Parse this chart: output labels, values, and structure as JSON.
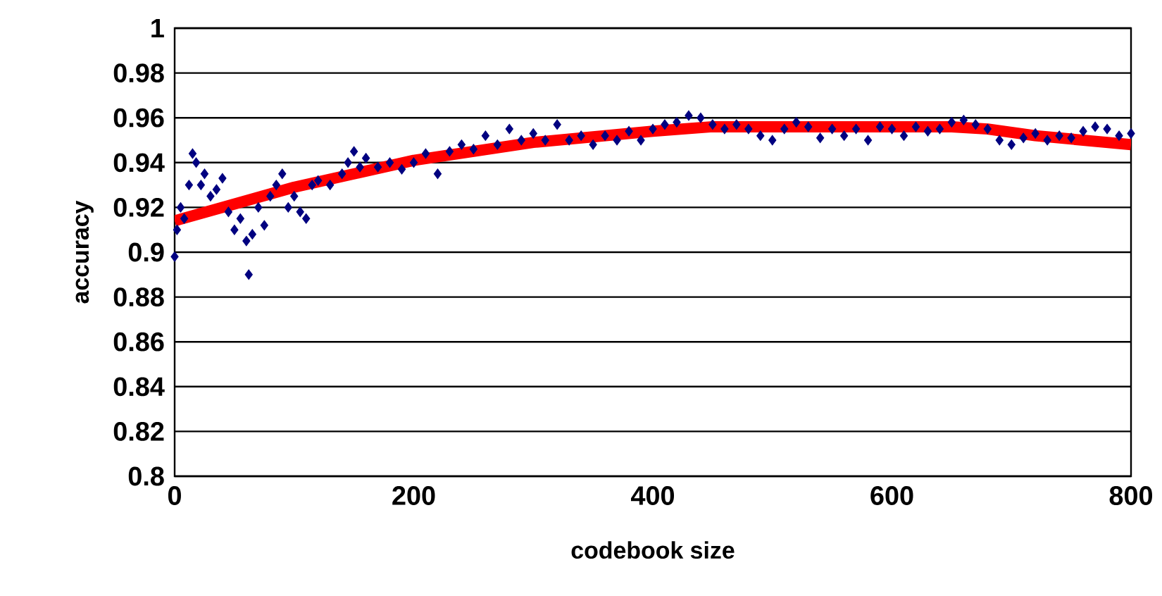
{
  "chart_data": {
    "type": "scatter",
    "xlabel": "codebook size",
    "ylabel": "accuracy",
    "xlim": [
      0,
      800
    ],
    "xticks": [
      0,
      200,
      400,
      600,
      800
    ],
    "ylim": [
      0.8,
      1
    ],
    "yticks": [
      0.8,
      0.82,
      0.84,
      0.86,
      0.88,
      0.9,
      0.92,
      0.94,
      0.96,
      0.98,
      1
    ],
    "grid": "y",
    "series": [
      {
        "marker": "diamond",
        "color": "#000080",
        "x": [
          0,
          2,
          5,
          8,
          12,
          15,
          18,
          22,
          25,
          30,
          35,
          40,
          45,
          50,
          55,
          60,
          62,
          65,
          70,
          75,
          80,
          85,
          90,
          95,
          100,
          105,
          110,
          115,
          120,
          130,
          140,
          145,
          150,
          155,
          160,
          170,
          180,
          190,
          200,
          210,
          220,
          230,
          240,
          250,
          260,
          270,
          280,
          290,
          300,
          310,
          320,
          330,
          340,
          350,
          360,
          370,
          380,
          390,
          400,
          410,
          420,
          430,
          440,
          450,
          460,
          470,
          480,
          490,
          500,
          510,
          520,
          530,
          540,
          550,
          560,
          570,
          580,
          590,
          600,
          610,
          620,
          630,
          640,
          650,
          660,
          670,
          680,
          690,
          700,
          710,
          720,
          730,
          740,
          750,
          760,
          770,
          780,
          790,
          800
        ],
        "values": [
          0.898,
          0.91,
          0.92,
          0.915,
          0.93,
          0.944,
          0.94,
          0.93,
          0.935,
          0.925,
          0.928,
          0.933,
          0.918,
          0.91,
          0.915,
          0.905,
          0.89,
          0.908,
          0.92,
          0.912,
          0.925,
          0.93,
          0.935,
          0.92,
          0.925,
          0.918,
          0.915,
          0.93,
          0.932,
          0.93,
          0.935,
          0.94,
          0.945,
          0.938,
          0.942,
          0.938,
          0.94,
          0.937,
          0.94,
          0.944,
          0.935,
          0.945,
          0.948,
          0.946,
          0.952,
          0.948,
          0.955,
          0.95,
          0.953,
          0.95,
          0.957,
          0.95,
          0.952,
          0.948,
          0.952,
          0.95,
          0.954,
          0.95,
          0.955,
          0.957,
          0.958,
          0.961,
          0.96,
          0.957,
          0.955,
          0.957,
          0.955,
          0.952,
          0.95,
          0.955,
          0.958,
          0.956,
          0.951,
          0.955,
          0.952,
          0.955,
          0.95,
          0.956,
          0.955,
          0.952,
          0.956,
          0.954,
          0.955,
          0.958,
          0.959,
          0.957,
          0.955,
          0.95,
          0.948,
          0.951,
          0.953,
          0.95,
          0.952,
          0.951,
          0.954,
          0.956,
          0.955,
          0.952,
          0.953
        ]
      },
      {
        "type": "line",
        "marker": "none",
        "color": "#ff0000",
        "x": [
          0,
          100,
          200,
          300,
          400,
          450,
          500,
          600,
          650,
          680,
          720,
          800
        ],
        "values": [
          0.914,
          0.929,
          0.941,
          0.949,
          0.954,
          0.956,
          0.956,
          0.956,
          0.956,
          0.955,
          0.952,
          0.948
        ]
      }
    ]
  }
}
